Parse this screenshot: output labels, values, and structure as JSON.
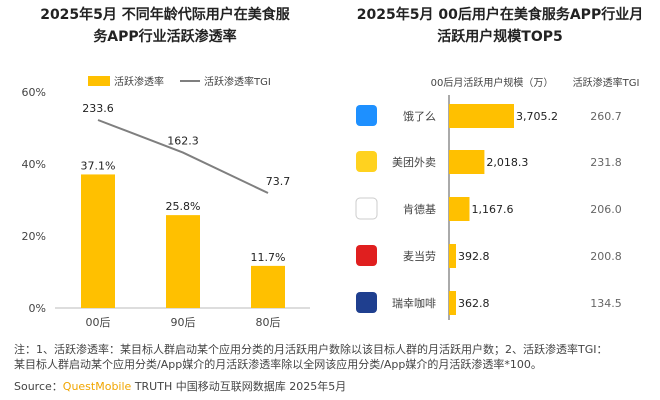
{
  "chart_data": [
    {
      "type": "bar",
      "title": "2025年5月 不同年龄代际用户在美食服务APP行业活跃渗透率",
      "title_lines": [
        "2025年5月 不同年龄代际用户在",
        "美食服务APP行业活跃渗透率"
      ],
      "categories": [
        "00后",
        "90后",
        "80后"
      ],
      "series": [
        {
          "name": "活跃渗透率",
          "type": "bar",
          "values": [
            37.1,
            25.8,
            11.7
          ],
          "labels": [
            "37.1%",
            "25.8%",
            "11.7%"
          ],
          "color": "#FFC000"
        },
        {
          "name": "活跃渗透率TGI",
          "type": "line",
          "values": [
            233.6,
            162.3,
            73.7
          ],
          "labels": [
            "233.6",
            "162.3",
            "73.7"
          ],
          "color": "#7f7f7f"
        }
      ],
      "ylim": [
        0,
        60
      ],
      "yticks": [
        "0%",
        "20%",
        "40%",
        "60%"
      ],
      "legend": "top"
    },
    {
      "type": "bar",
      "orientation": "horizontal",
      "title": "2025年5月 00后用户在美食服务APP行业月活跃用户规模TOP5",
      "title_lines": [
        "2025年5月 00后用户在美食服务APP行业",
        "月活跃用户规模TOP5"
      ],
      "column_headers": [
        "00后月活跃用户规模（万）",
        "活跃渗透率TGI"
      ],
      "categories": [
        "饿了么",
        "美团外卖",
        "肯德基",
        "麦当劳",
        "瑞幸咖啡"
      ],
      "icons": [
        "eleme-icon",
        "meituan-waimai-icon",
        "kfc-icon",
        "mcdonalds-icon",
        "luckin-coffee-icon"
      ],
      "values": [
        3705.2,
        2018.3,
        1167.6,
        392.8,
        362.8
      ],
      "labels": [
        "3,705.2",
        "2,018.3",
        "1,167.6",
        "392.8",
        "362.8"
      ],
      "tgi": [
        "260.7",
        "231.8",
        "206.0",
        "200.8",
        "134.5"
      ],
      "color": "#FFC000"
    }
  ],
  "notes": {
    "line1": "注：1、活跃渗透率：某目标人群启动某个应用分类的月活跃用户数除以该目标人群的月活跃用户数；2、活跃渗透率TGI：",
    "line2": "某目标人群启动某个应用分类/App媒介的月活跃渗透率除以全网该应用分类/App媒介的月活跃渗透率*100。",
    "source_label": "Source：",
    "source_brand": "QuestMobile",
    "source_rest": "TRUTH 中国移动互联网数据库 2025年5月"
  },
  "watermark": "QUEST MOBILE"
}
